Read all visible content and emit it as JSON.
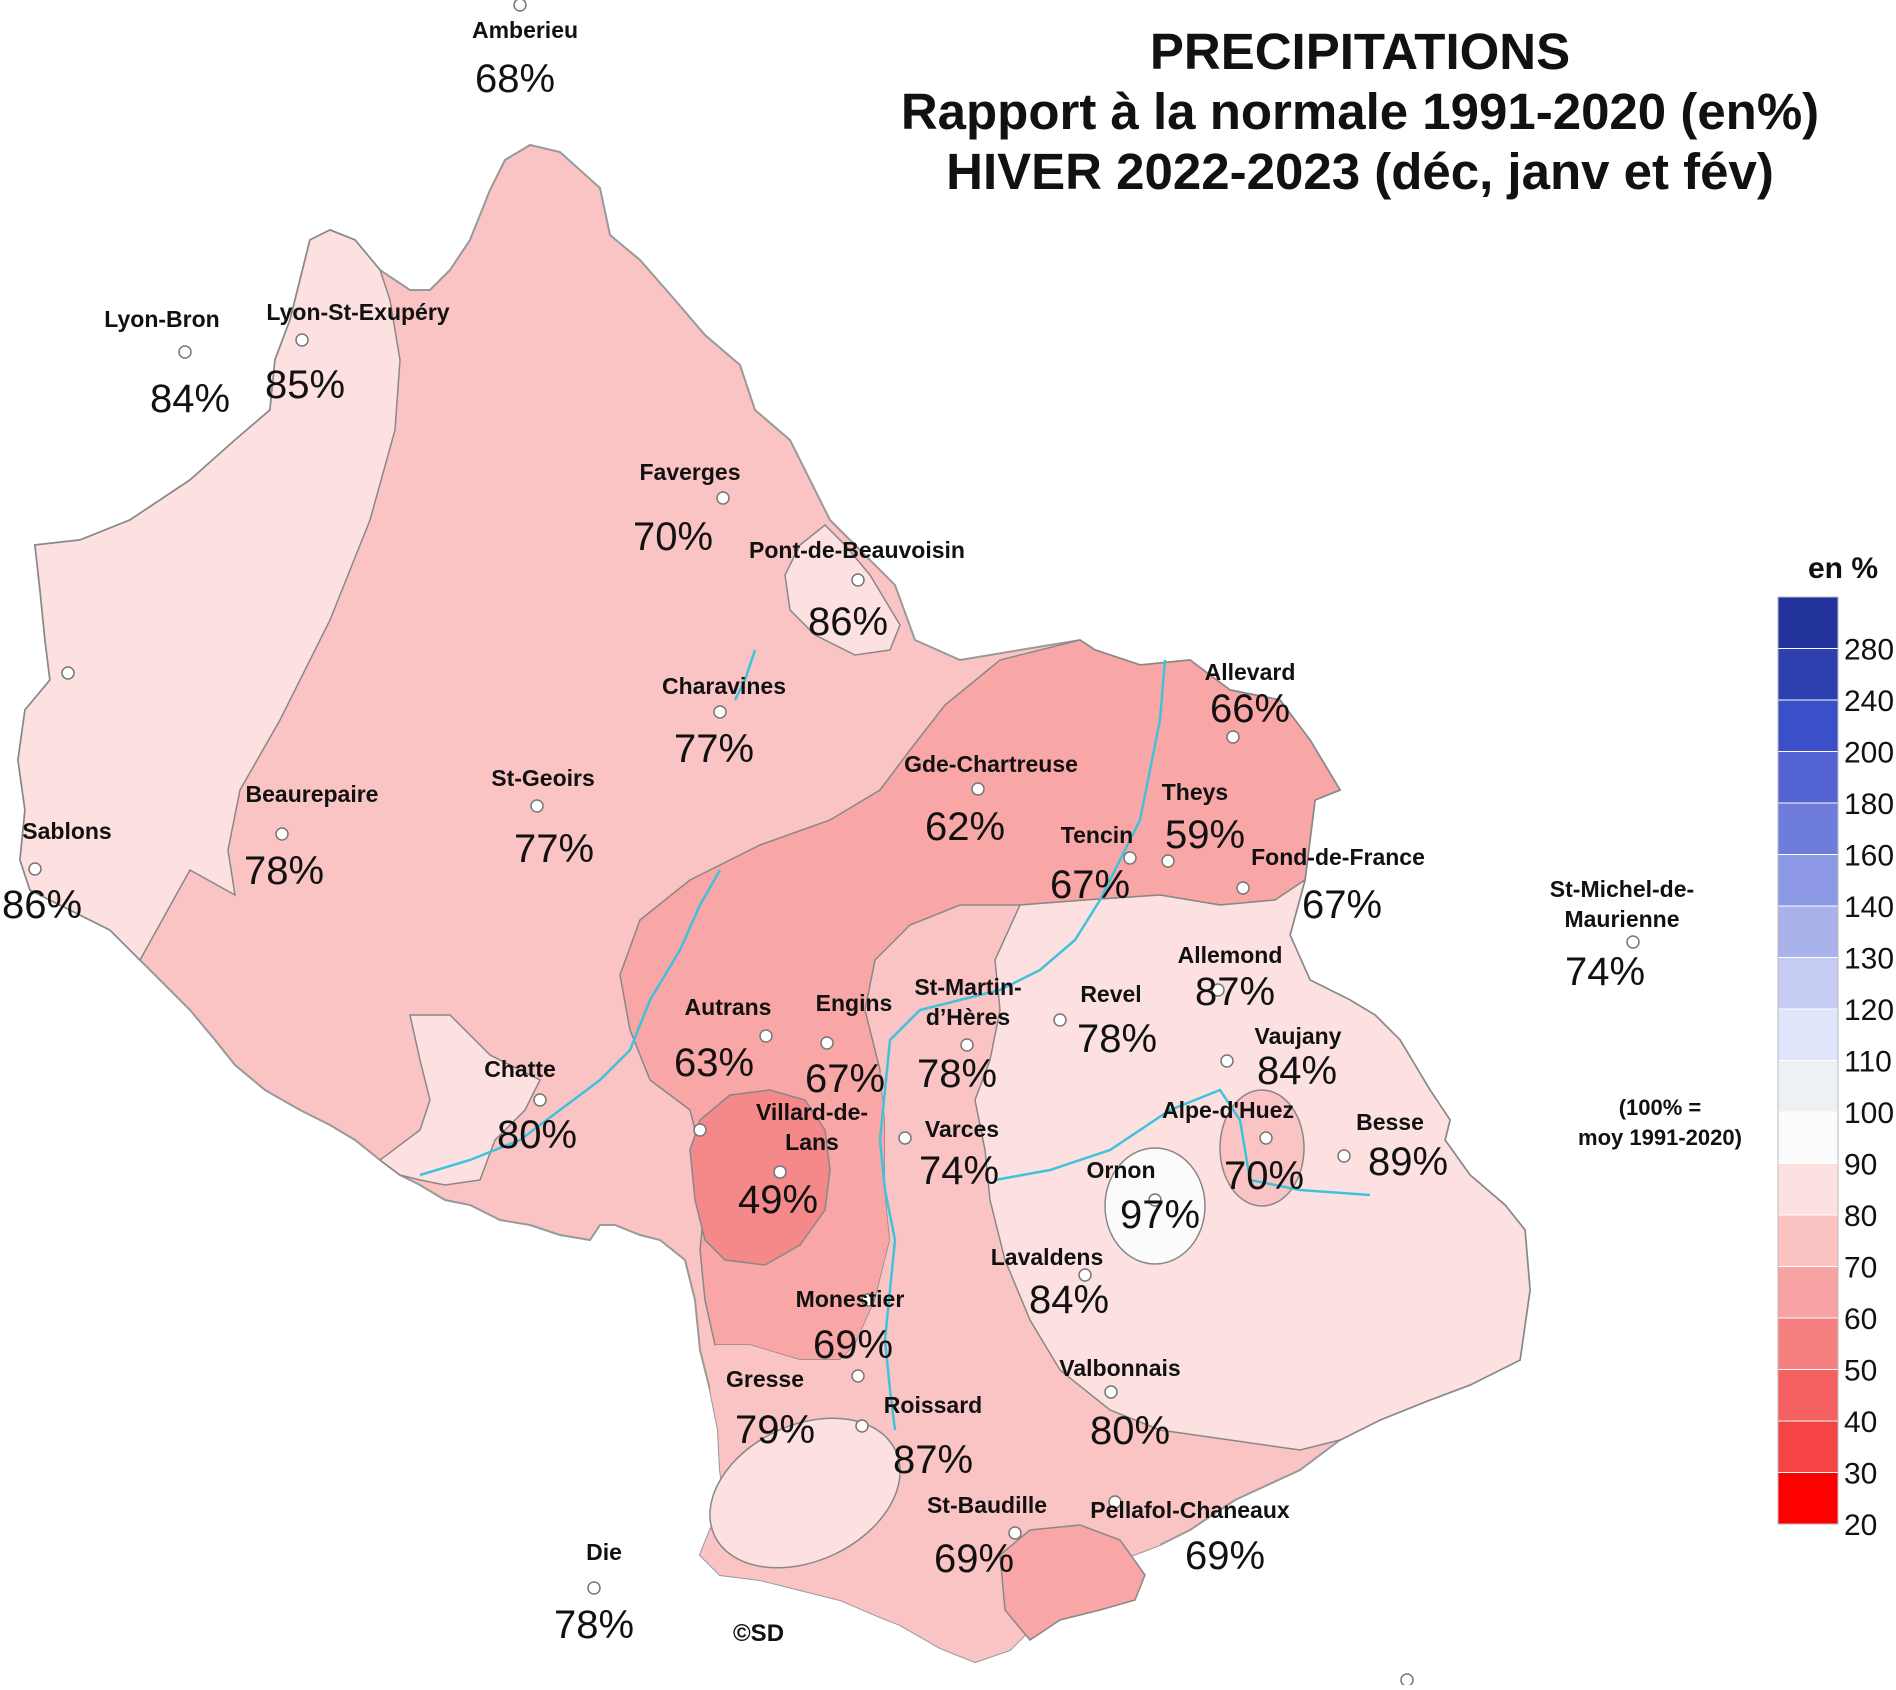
{
  "title": {
    "line1": "PRECIPITATIONS",
    "line2": "Rapport à la normale 1991-2020 (en%)",
    "line3": "HIVER 2022-2023 (déc, janv et fév)"
  },
  "copyright": "©SD",
  "legend": {
    "title": "en %",
    "note_line1": "(100% =",
    "note_line2": "moy 1991-2020)",
    "ticks": [
      "280",
      "240",
      "200",
      "180",
      "160",
      "140",
      "130",
      "120",
      "110",
      "100",
      "90",
      "80",
      "70",
      "60",
      "50",
      "40",
      "30",
      "20"
    ],
    "colors_top_to_bottom": [
      "#22349c",
      "#2c40b0",
      "#3a4fc8",
      "#5463d2",
      "#6e7cdb",
      "#8c98e3",
      "#a9b2ea",
      "#c6ccf2",
      "#dfe5fb",
      "#eef1f3",
      "#fbfbfb",
      "#fde1e1",
      "#fbc2c2",
      "#f8a3a3",
      "#f67f7f",
      "#f55f5f",
      "#f64343",
      "#ff0000"
    ]
  },
  "colors": {
    "band_80_90": "#fde1e1",
    "band_70_80": "#fbc4c4",
    "band_60_70": "#f8a6a6",
    "band_50_60": "#f58888",
    "band_90_100": "#fbfbfb",
    "river": "#3fc3dc"
  },
  "stations": [
    {
      "name": "Amberieu",
      "value": "68%"
    },
    {
      "name": "Lyon-Bron",
      "value": "84%"
    },
    {
      "name": "Lyon-St-Exupéry",
      "value": "85%"
    },
    {
      "name": "Faverges",
      "value": "70%"
    },
    {
      "name": "Pont-de-Beauvoisin",
      "value": "86%"
    },
    {
      "name": "Charavines",
      "value": "77%"
    },
    {
      "name": "St-Geoirs",
      "value": "77%"
    },
    {
      "name": "Beaurepaire",
      "value": "78%"
    },
    {
      "name": "Sablons",
      "value": "86%"
    },
    {
      "name": "Allevard",
      "value": "66%"
    },
    {
      "name": "Gde-Chartreuse",
      "value": "62%"
    },
    {
      "name": "Theys",
      "value": "59%"
    },
    {
      "name": "Tencin",
      "value": "67%"
    },
    {
      "name": "Fond-de-France",
      "value": "67%"
    },
    {
      "name": "St-Michel-de-Maurienne",
      "value": "74%"
    },
    {
      "name": "Allemond",
      "value": "87%"
    },
    {
      "name": "St-Martin-d’Hères",
      "value": "78%"
    },
    {
      "name": "Revel",
      "value": "78%"
    },
    {
      "name": "Vaujany",
      "value": "84%"
    },
    {
      "name": "Autrans",
      "value": "63%"
    },
    {
      "name": "Engins",
      "value": "67%"
    },
    {
      "name": "Chatte",
      "value": "80%"
    },
    {
      "name": "Villard-de-Lans",
      "value": "49%"
    },
    {
      "name": "Varces",
      "value": "74%"
    },
    {
      "name": "Alpe-d'Huez",
      "value": "70%"
    },
    {
      "name": "Besse",
      "value": "89%"
    },
    {
      "name": "Ornon",
      "value": "97%"
    },
    {
      "name": "Lavaldens",
      "value": "84%"
    },
    {
      "name": "Monestier",
      "value": "69%"
    },
    {
      "name": "Gresse",
      "value": "79%"
    },
    {
      "name": "Roissard",
      "value": "87%"
    },
    {
      "name": "Valbonnais",
      "value": "80%"
    },
    {
      "name": "St-Baudille",
      "value": "69%"
    },
    {
      "name": "Pellafol-Chaneaux",
      "value": "69%"
    },
    {
      "name": "Die",
      "value": "78%"
    }
  ]
}
